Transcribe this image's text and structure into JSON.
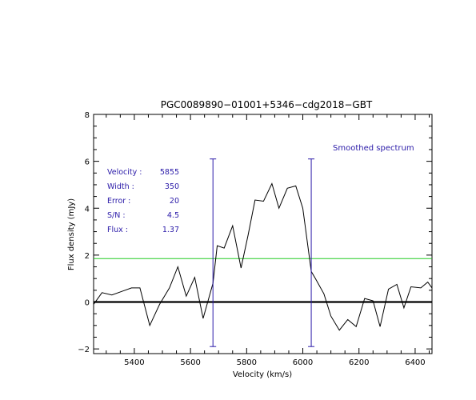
{
  "chart_data": {
    "type": "line",
    "title": "PGC0089890−01001+5346−cdg2018−GBT",
    "xlabel": "Velocity (km/s)",
    "ylabel": "Flux density (mJy)",
    "xlim": [
      5255,
      6460
    ],
    "ylim": [
      -2.2,
      8.0
    ],
    "x_ticks": [
      5400,
      5600,
      5800,
      6000,
      6200,
      6400
    ],
    "y_ticks": [
      -2,
      0,
      2,
      4,
      6,
      8
    ],
    "legend_text": "Smoothed spectrum",
    "baseline": 0,
    "green_level": 1.85,
    "markers": [
      {
        "x": 5680,
        "y_top": 6.1,
        "y_bottom": -1.9
      },
      {
        "x": 6030,
        "y_top": 6.1,
        "y_bottom": -1.9
      }
    ],
    "info": [
      {
        "label": "Velocity :",
        "value": "5855"
      },
      {
        "label": "Width :",
        "value": "350"
      },
      {
        "label": "Error :",
        "value": "20"
      },
      {
        "label": "S/N :",
        "value": "4.5"
      },
      {
        "label": "Flux :",
        "value": "1.37"
      }
    ],
    "colors": {
      "spectrum": "#000000",
      "markers": "#2a1aa8",
      "green": "#22cc22",
      "info_text": "#2a1aa8"
    },
    "series": [
      {
        "x": [
          5255,
          5285,
          5320,
          5355,
          5390,
          5420,
          5455,
          5490,
          5525,
          5555,
          5585,
          5615,
          5645,
          5680,
          5695,
          5720,
          5750,
          5780,
          5805,
          5830,
          5860,
          5890,
          5915,
          5945,
          5975,
          6000,
          6030,
          6045,
          6075,
          6100,
          6130,
          6160,
          6190,
          6220,
          6250,
          6275,
          6305,
          6335,
          6360,
          6385,
          6420,
          6445,
          6460
        ],
        "y": [
          -0.1,
          0.4,
          0.3,
          0.45,
          0.6,
          0.6,
          -1.0,
          -0.1,
          0.6,
          1.5,
          0.25,
          1.05,
          -0.7,
          0.8,
          2.4,
          2.3,
          3.25,
          1.45,
          2.85,
          4.35,
          4.3,
          5.05,
          4.0,
          4.85,
          4.95,
          4.0,
          1.3,
          1.0,
          0.35,
          -0.6,
          -1.2,
          -0.75,
          -1.05,
          0.15,
          0.05,
          -1.05,
          0.55,
          0.75,
          -0.25,
          0.65,
          0.6,
          0.85,
          0.6
        ]
      }
    ]
  }
}
